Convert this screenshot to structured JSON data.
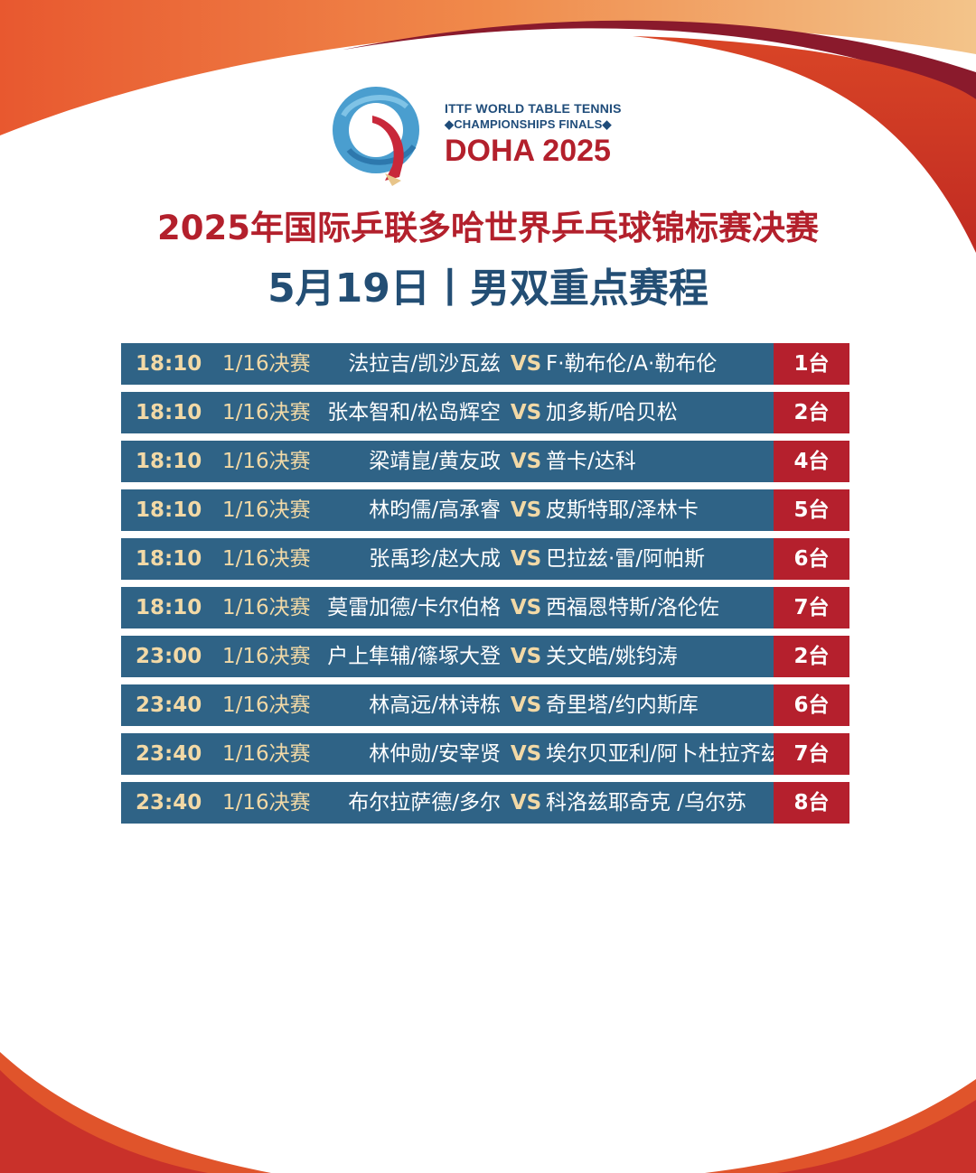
{
  "logo": {
    "line1": "ITTF WORLD TABLE TENNIS",
    "line2": "◆CHAMPIONSHIPS FINALS◆",
    "line3": "DOHA 2025"
  },
  "title": "2025年国际乒联多哈世界乒乓球锦标赛决赛",
  "subtitle": "5月19日丨男双重点赛程",
  "colors": {
    "row_bg": "#2f6386",
    "accent_red": "#b5202d",
    "gold_text": "#f2d9a6",
    "subtitle_blue": "#234e74",
    "title_red": "#b3202c"
  },
  "schedule": [
    {
      "time": "18:10",
      "round": "1/16决赛",
      "pair1": "法拉吉/凯沙瓦兹",
      "vs": "VS",
      "pair2": "F·勒布伦/A·勒布伦",
      "table": "1台"
    },
    {
      "time": "18:10",
      "round": "1/16决赛",
      "pair1": "张本智和/松岛辉空",
      "vs": "VS",
      "pair2": "加多斯/哈贝松",
      "table": "2台"
    },
    {
      "time": "18:10",
      "round": "1/16决赛",
      "pair1": "梁靖崑/黄友政",
      "vs": "VS",
      "pair2": "普卡/达科",
      "table": "4台"
    },
    {
      "time": "18:10",
      "round": "1/16决赛",
      "pair1": "林昀儒/高承睿",
      "vs": "VS",
      "pair2": "皮斯特耶/泽林卡",
      "table": "5台"
    },
    {
      "time": "18:10",
      "round": "1/16决赛",
      "pair1": "张禹珍/赵大成",
      "vs": "VS",
      "pair2": "巴拉兹·雷/阿帕斯",
      "table": "6台"
    },
    {
      "time": "18:10",
      "round": "1/16决赛",
      "pair1": "莫雷加德/卡尔伯格",
      "vs": "VS",
      "pair2": "西福恩特斯/洛伦佐",
      "table": "7台"
    },
    {
      "time": "23:00",
      "round": "1/16决赛",
      "pair1": "户上隼辅/篠塚大登",
      "vs": "VS",
      "pair2": "关文皓/姚钧涛",
      "table": "2台"
    },
    {
      "time": "23:40",
      "round": "1/16决赛",
      "pair1": "林高远/林诗栋",
      "vs": "VS",
      "pair2": "奇里塔/约内斯库",
      "table": "6台"
    },
    {
      "time": "23:40",
      "round": "1/16决赛",
      "pair1": "林仲勋/安宰贤",
      "vs": "VS",
      "pair2": "埃尔贝亚利/阿卜杜拉齐兹",
      "table": "7台"
    },
    {
      "time": "23:40",
      "round": "1/16决赛",
      "pair1": "布尔拉萨德/多尔",
      "vs": "VS",
      "pair2": "科洛兹耶奇克 /乌尔苏",
      "table": "8台"
    }
  ]
}
